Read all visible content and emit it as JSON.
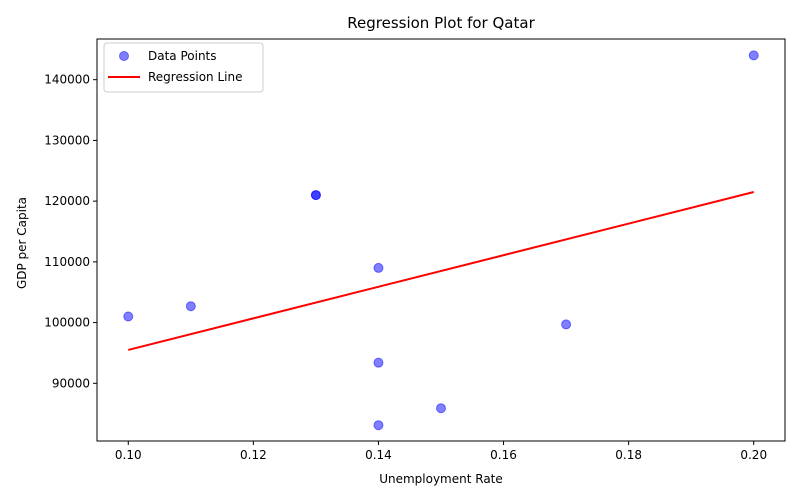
{
  "chart_data": {
    "type": "scatter",
    "title": "Regression Plot for Qatar",
    "xlabel": "Unemployment Rate",
    "ylabel": "GDP per Capita",
    "xlim": [
      0.095,
      0.205
    ],
    "ylim": [
      80500,
      146700
    ],
    "xticks": [
      0.1,
      0.12,
      0.14,
      0.16,
      0.18,
      0.2
    ],
    "xtick_labels": [
      "0.10",
      "0.12",
      "0.14",
      "0.16",
      "0.18",
      "0.20"
    ],
    "yticks": [
      90000,
      100000,
      110000,
      120000,
      130000,
      140000
    ],
    "ytick_labels": [
      "90000",
      "100000",
      "110000",
      "120000",
      "130000",
      "140000"
    ],
    "grid": false,
    "legend_position": "top-left",
    "series": [
      {
        "name": "Data Points",
        "kind": "scatter",
        "color": "#0000ff",
        "x": [
          0.1,
          0.11,
          0.13,
          0.13,
          0.14,
          0.14,
          0.14,
          0.15,
          0.17,
          0.2
        ],
        "y": [
          101000,
          102700,
          121000,
          121000,
          109000,
          93400,
          83100,
          85900,
          99700,
          144000
        ]
      },
      {
        "name": "Regression Line",
        "kind": "line",
        "color": "#ff0000",
        "x": [
          0.1,
          0.2
        ],
        "y": [
          95500,
          121500
        ]
      }
    ]
  }
}
